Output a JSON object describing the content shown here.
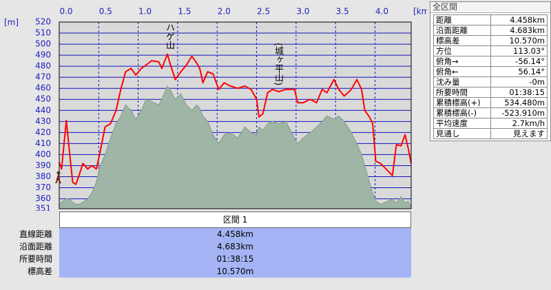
{
  "chart_data": {
    "type": "line",
    "x_label": "[km]",
    "y_label": "[m]",
    "annotations": [
      "ハゲ山",
      "(城ヶ平山)"
    ],
    "x": [
      0,
      0.03,
      0.09,
      0.12,
      0.17,
      0.21,
      0.25,
      0.3,
      0.36,
      0.41,
      0.47,
      0.52,
      0.58,
      0.65,
      0.72,
      0.78,
      0.84,
      0.91,
      0.97,
      1.04,
      1.1,
      1.17,
      1.26,
      1.3,
      1.37,
      1.41,
      1.47,
      1.54,
      1.61,
      1.68,
      1.74,
      1.78,
      1.82,
      1.88,
      1.95,
      2.02,
      2.09,
      2.17,
      2.26,
      2.35,
      2.43,
      2.5,
      2.53,
      2.58,
      2.64,
      2.7,
      2.78,
      2.87,
      2.98,
      3.02,
      3.09,
      3.18,
      3.26,
      3.33,
      3.39,
      3.48,
      3.54,
      3.61,
      3.7,
      3.77,
      3.83,
      3.87,
      3.93,
      3.97,
      4.01,
      4.07,
      4.14,
      4.22,
      4.27,
      4.33,
      4.38,
      4.42,
      4.458
    ],
    "series": [
      {
        "color": "#9fb5a6",
        "fill": true,
        "values": [
          355,
          357,
          360,
          360,
          357,
          355,
          355,
          357,
          360,
          365,
          375,
          390,
          400,
          415,
          428,
          435,
          445,
          440,
          432,
          440,
          450,
          448,
          445,
          450,
          462,
          458,
          450,
          455,
          445,
          440,
          445,
          442,
          435,
          430,
          418,
          410,
          418,
          420,
          415,
          425,
          420,
          418,
          425,
          422,
          428,
          430,
          428,
          430,
          415,
          410,
          415,
          420,
          425,
          430,
          435,
          432,
          435,
          430,
          420,
          410,
          400,
          390,
          375,
          365,
          358,
          355,
          357,
          360,
          356,
          362,
          356,
          358,
          352
        ]
      },
      {
        "color": "#ff0000",
        "fill": false,
        "values": [
          393,
          387,
          431,
          409,
          375,
          373,
          381,
          392,
          387,
          390,
          387,
          403,
          425,
          428,
          440,
          459,
          475,
          478,
          472,
          478,
          481,
          485,
          484,
          478,
          491,
          481,
          468,
          475,
          481,
          489,
          483,
          478,
          465,
          475,
          473,
          459,
          465,
          462,
          460,
          462,
          459,
          450,
          434,
          437,
          456,
          459,
          457,
          459,
          459,
          447,
          447,
          450,
          447,
          459,
          456,
          468,
          459,
          453,
          459,
          468,
          459,
          440,
          434,
          428,
          394,
          392,
          387,
          381,
          409,
          408,
          418,
          406,
          392
        ]
      }
    ],
    "xlim": [
      0,
      4.458
    ],
    "xticks": [
      {
        "value": 0,
        "label": "0.0"
      },
      0.5,
      {
        "value": 1,
        "label": "1.0"
      },
      1.5,
      {
        "value": 2,
        "label": "2.0"
      },
      2.5,
      {
        "value": 3,
        "label": "3.0"
      },
      3.5,
      {
        "value": 4,
        "label": "4.0"
      }
    ],
    "ylim": [
      351,
      520
    ],
    "yticks": [
      520,
      510,
      500,
      490,
      480,
      470,
      460,
      450,
      440,
      430,
      420,
      410,
      400,
      390,
      380,
      370,
      360,
      351
    ],
    "grid": true
  },
  "section_table": {
    "header": "区間 1",
    "rows": [
      [
        "直線距離",
        "4.458km"
      ],
      [
        "沿面距離",
        "4.683km"
      ],
      [
        "所要時間",
        "01:38:15"
      ],
      [
        "標高差",
        "10.570m"
      ]
    ]
  },
  "summary_panel": {
    "title": "全区間",
    "rows": [
      [
        "距離",
        "4.458km"
      ],
      [
        "沿面距離",
        "4.683km"
      ],
      [
        "標高差",
        "10.570m"
      ],
      [
        "方位",
        "113.03°"
      ],
      [
        "俯角→",
        "-56.14°"
      ],
      [
        "俯角←",
        "56.14°"
      ],
      [
        "沈み量",
        "-0m"
      ],
      [
        "所要時間",
        "01:38:15"
      ],
      [
        "累積標高(+)",
        "534.480m"
      ],
      [
        "累積標高(-)",
        "-523.910m"
      ],
      [
        "平均速度",
        "2.7km/h"
      ],
      [
        "見通し",
        "見えます"
      ]
    ]
  }
}
